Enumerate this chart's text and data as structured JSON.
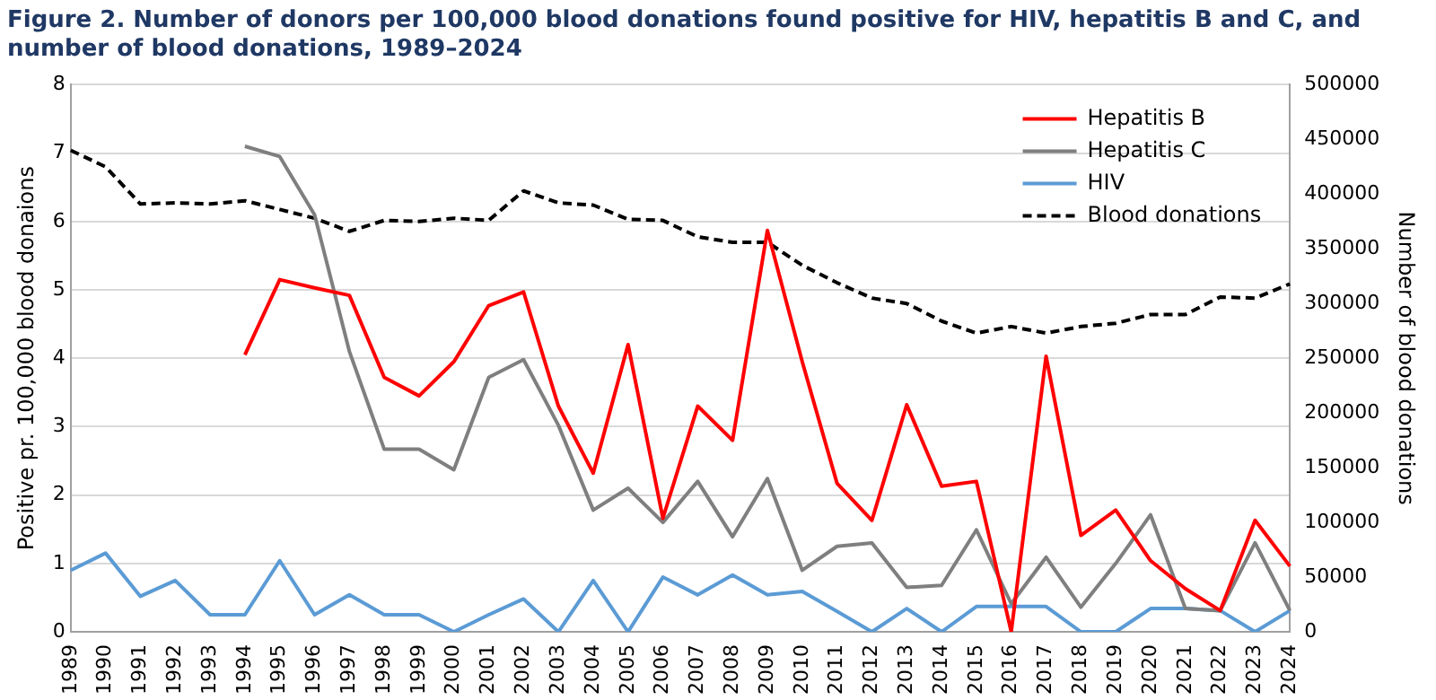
{
  "chart_data": {
    "type": "line",
    "title": "Figure 2. Number of donors per 100,000 blood donations found positive for HIV, hepatitis B and C, and number of blood donations, 1989–2024",
    "ylabel": "Positive pr. 100,000 blood donaions",
    "y2label": "Number of blood donations",
    "categories": [
      "1989",
      "1990",
      "1991",
      "1992",
      "1993",
      "1994",
      "1995",
      "1996",
      "1997",
      "1998",
      "1999",
      "2000",
      "2001",
      "2002",
      "2003",
      "2004",
      "2005",
      "2006",
      "2007",
      "2008",
      "2009",
      "2010",
      "2011",
      "2012",
      "2013",
      "2014",
      "2015",
      "2016",
      "2017",
      "2018",
      "2019",
      "2020",
      "2021",
      "2022",
      "2023",
      "2024"
    ],
    "ylim": [
      0,
      8
    ],
    "yticks": [
      0,
      1,
      2,
      3,
      4,
      5,
      6,
      7,
      8
    ],
    "y2lim": [
      0,
      500000
    ],
    "y2ticks": [
      0,
      50000,
      100000,
      150000,
      200000,
      250000,
      300000,
      350000,
      400000,
      450000,
      500000
    ],
    "grid": "y",
    "legend": "top right",
    "marker": "none",
    "series": [
      {
        "name": "Hepatitis B",
        "color": "#ff0000",
        "values": [
          null,
          null,
          null,
          null,
          null,
          4.05,
          5.15,
          5.03,
          4.92,
          3.72,
          3.45,
          3.95,
          4.77,
          4.97,
          3.3,
          2.32,
          4.2,
          1.66,
          3.3,
          2.8,
          5.87,
          3.95,
          2.17,
          1.63,
          3.32,
          2.13,
          2.2,
          0,
          4.03,
          1.41,
          1.78,
          1.04,
          0.63,
          0.31,
          1.63,
          0.96
        ]
      },
      {
        "name": "Hepatitis C",
        "color": "#7f7f7f",
        "values": [
          null,
          null,
          null,
          null,
          null,
          7.1,
          6.95,
          6.1,
          4.1,
          2.67,
          2.67,
          2.37,
          3.72,
          3.98,
          3.02,
          1.78,
          2.1,
          1.6,
          2.2,
          1.39,
          2.24,
          0.9,
          1.25,
          1.3,
          0.65,
          0.68,
          1.49,
          0.41,
          1.09,
          0.36,
          1.0,
          1.71,
          0.34,
          0.31,
          1.3,
          0.31
        ]
      },
      {
        "name": "HIV",
        "color": "#5b9bd5",
        "values": [
          0.9,
          1.15,
          0.52,
          0.75,
          0.25,
          0.25,
          1.04,
          0.25,
          0.54,
          0.25,
          0.25,
          0,
          0.25,
          0.48,
          0,
          0.75,
          0,
          0.8,
          0.54,
          0.83,
          0.54,
          0.59,
          0.3,
          0,
          0.34,
          0,
          0.37,
          0.37,
          0.37,
          0,
          0,
          0.34,
          0.34,
          0.31,
          0,
          0.31
        ]
      },
      {
        "name": "Blood donations",
        "color": "#000000",
        "axis": "y2",
        "line_style": "dashed",
        "values": [
          440000,
          425000,
          391000,
          392000,
          391000,
          394000,
          386000,
          378000,
          366000,
          376000,
          375000,
          378000,
          376000,
          403000,
          392000,
          390000,
          377000,
          376000,
          361000,
          356000,
          356000,
          335000,
          319000,
          305000,
          300000,
          284000,
          273000,
          279000,
          273000,
          279000,
          282000,
          290000,
          290000,
          306000,
          305000,
          318000
        ]
      }
    ]
  }
}
